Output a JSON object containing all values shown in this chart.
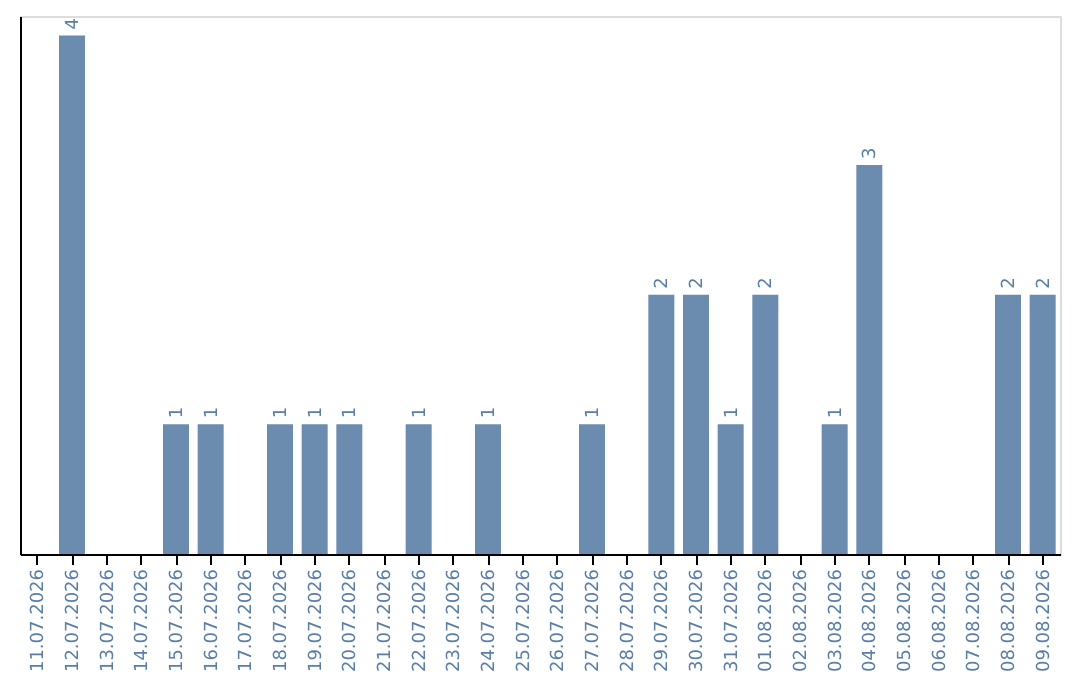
{
  "chart_data": {
    "type": "bar",
    "categories": [
      "11.07.2026",
      "12.07.2026",
      "13.07.2026",
      "14.07.2026",
      "15.07.2026",
      "16.07.2026",
      "17.07.2026",
      "18.07.2026",
      "19.07.2026",
      "20.07.2026",
      "21.07.2026",
      "22.07.2026",
      "23.07.2026",
      "24.07.2026",
      "25.07.2026",
      "26.07.2026",
      "27.07.2026",
      "28.07.2026",
      "29.07.2026",
      "30.07.2026",
      "31.07.2026",
      "01.08.2026",
      "02.08.2026",
      "03.08.2026",
      "04.08.2026",
      "05.08.2026",
      "06.08.2026",
      "07.08.2026",
      "08.08.2026",
      "09.08.2026"
    ],
    "values": [
      null,
      4,
      null,
      null,
      1,
      1,
      null,
      1,
      1,
      1,
      null,
      1,
      null,
      1,
      null,
      null,
      1,
      null,
      2,
      2,
      1,
      2,
      null,
      1,
      3,
      null,
      null,
      null,
      2,
      2
    ],
    "color": "#6b8cae",
    "ylim": [
      0,
      4.15
    ],
    "data_labels": true,
    "tick_labels": "x",
    "grid": false
  }
}
